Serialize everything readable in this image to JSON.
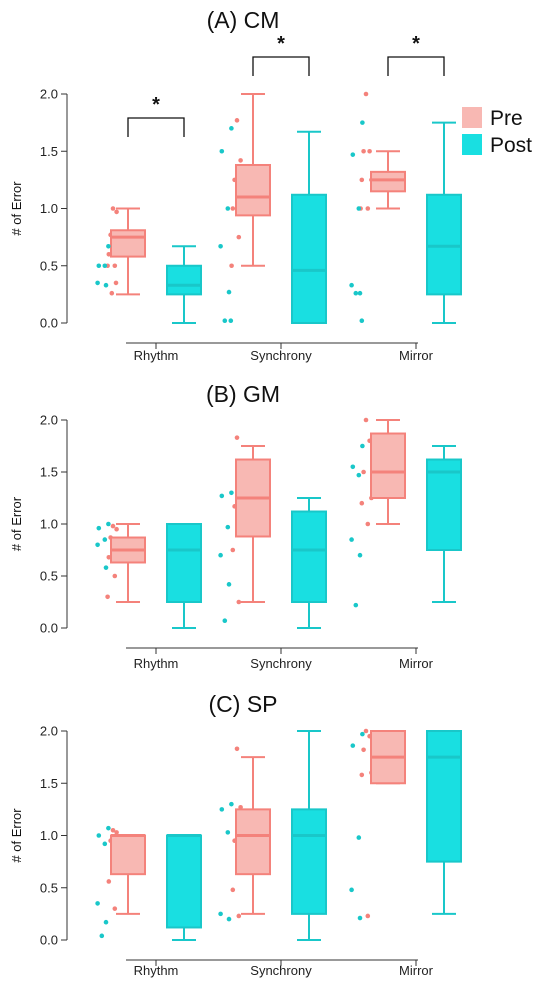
{
  "chart_data": [
    {
      "type": "box",
      "title": "(A) CM",
      "xlabel": "",
      "ylabel": "# of Error",
      "ylim": [
        0,
        2
      ],
      "yticks": [
        0.0,
        0.5,
        1.0,
        1.5,
        2.0
      ],
      "ytick_labels": [
        "0.0",
        "0.5",
        "1.0",
        "1.5",
        "2.0"
      ],
      "categories": [
        "Rhythm",
        "Synchrony",
        "Mirror"
      ],
      "legend": {
        "entries": [
          "Pre",
          "Post"
        ],
        "position": "top-right"
      },
      "significance_markers": [
        {
          "category": "Rhythm",
          "label": "*"
        },
        {
          "category": "Synchrony",
          "label": "*"
        },
        {
          "category": "Mirror",
          "label": "*"
        }
      ],
      "series": [
        {
          "name": "Pre",
          "color": "#f4827b",
          "fill": "#f8b8b3",
          "boxes": [
            {
              "min": 0.25,
              "q1": 0.58,
              "median": 0.75,
              "q3": 0.81,
              "max": 1.0
            },
            {
              "min": 0.5,
              "q1": 0.94,
              "median": 1.1,
              "q3": 1.38,
              "max": 2.0
            },
            {
              "min": 1.0,
              "q1": 1.15,
              "median": 1.25,
              "q3": 1.32,
              "max": 1.5
            }
          ],
          "points": [
            [
              1.0,
              0.97,
              0.77,
              0.75,
              0.6,
              0.5,
              0.5,
              0.35,
              0.26
            ],
            [
              1.77,
              1.42,
              1.25,
              1.2,
              1.0,
              0.75,
              0.5
            ],
            [
              2.0,
              1.5,
              1.5,
              1.25,
              1.25,
              1.0,
              1.0
            ]
          ]
        },
        {
          "name": "Post",
          "color": "#19c7c9",
          "fill": "#19dfe1",
          "boxes": [
            {
              "min": 0.0,
              "q1": 0.25,
              "median": 0.33,
              "q3": 0.5,
              "max": 0.67
            },
            {
              "min": 0.0,
              "q1": 0.0,
              "median": 0.46,
              "q3": 1.12,
              "max": 1.67
            },
            {
              "min": 0.0,
              "q1": 0.25,
              "median": 0.67,
              "q3": 1.12,
              "max": 1.75
            }
          ],
          "points": [
            [
              0.67,
              0.5,
              0.5,
              0.35,
              0.33
            ],
            [
              1.7,
              1.5,
              1.0,
              0.67,
              0.27,
              0.02,
              0.02
            ],
            [
              1.75,
              1.47,
              1.0,
              0.33,
              0.26,
              0.26,
              0.02
            ]
          ]
        }
      ]
    },
    {
      "type": "box",
      "title": "(B) GM",
      "xlabel": "",
      "ylabel": "# of Error",
      "ylim": [
        0,
        2
      ],
      "yticks": [
        0.0,
        0.5,
        1.0,
        1.5,
        2.0
      ],
      "ytick_labels": [
        "0.0",
        "0.5",
        "1.0",
        "1.5",
        "2.0"
      ],
      "categories": [
        "Rhythm",
        "Synchrony",
        "Mirror"
      ],
      "series": [
        {
          "name": "Pre",
          "color": "#f4827b",
          "fill": "#f8b8b3",
          "boxes": [
            {
              "min": 0.25,
              "q1": 0.63,
              "median": 0.75,
              "q3": 0.87,
              "max": 1.0
            },
            {
              "min": 0.25,
              "q1": 0.88,
              "median": 1.25,
              "q3": 1.62,
              "max": 1.75
            },
            {
              "min": 1.0,
              "q1": 1.25,
              "median": 1.5,
              "q3": 1.87,
              "max": 2.0
            }
          ],
          "points": [
            [
              0.98,
              0.95,
              0.87,
              0.8,
              0.68,
              0.5,
              0.3
            ],
            [
              1.83,
              1.45,
              1.17,
              0.95,
              0.75,
              0.25
            ],
            [
              2.0,
              1.8,
              1.5,
              1.25,
              1.2,
              1.0
            ]
          ]
        },
        {
          "name": "Post",
          "color": "#19c7c9",
          "fill": "#19dfe1",
          "boxes": [
            {
              "min": 0.0,
              "q1": 0.25,
              "median": 0.75,
              "q3": 1.0,
              "max": 1.0
            },
            {
              "min": 0.0,
              "q1": 0.25,
              "median": 0.75,
              "q3": 1.12,
              "max": 1.25
            },
            {
              "min": 0.25,
              "q1": 0.75,
              "median": 1.5,
              "q3": 1.62,
              "max": 1.75
            }
          ],
          "points": [
            [
              1.0,
              0.96,
              0.85,
              0.8,
              0.58
            ],
            [
              1.3,
              1.27,
              0.97,
              0.7,
              0.42,
              0.07
            ],
            [
              1.75,
              1.55,
              1.47,
              0.85,
              0.7,
              0.22
            ]
          ]
        }
      ]
    },
    {
      "type": "box",
      "title": "(C) SP",
      "xlabel": "",
      "ylabel": "# of Error",
      "ylim": [
        0,
        2
      ],
      "yticks": [
        0.0,
        0.5,
        1.0,
        1.5,
        2.0
      ],
      "ytick_labels": [
        "0.0",
        "0.5",
        "1.0",
        "1.5",
        "2.0"
      ],
      "categories": [
        "Rhythm",
        "Synchrony",
        "Mirror"
      ],
      "series": [
        {
          "name": "Pre",
          "color": "#f4827b",
          "fill": "#f8b8b3",
          "boxes": [
            {
              "min": 0.25,
              "q1": 0.63,
              "median": 1.0,
              "q3": 1.0,
              "max": 1.0
            },
            {
              "min": 0.25,
              "q1": 0.63,
              "median": 1.0,
              "q3": 1.25,
              "max": 1.75
            },
            {
              "min": 1.5,
              "q1": 1.5,
              "median": 1.75,
              "q3": 2.0,
              "max": 2.0
            }
          ],
          "points": [
            [
              1.05,
              1.03,
              0.95,
              0.75,
              0.56,
              0.3
            ],
            [
              1.83,
              1.27,
              0.95,
              0.72,
              0.48,
              0.23
            ],
            [
              2.0,
              1.95,
              1.82,
              1.6,
              1.58,
              0.23
            ]
          ]
        },
        {
          "name": "Post",
          "color": "#19c7c9",
          "fill": "#19dfe1",
          "boxes": [
            {
              "min": 0.0,
              "q1": 0.12,
              "median": 1.0,
              "q3": 1.0,
              "max": 1.0
            },
            {
              "min": 0.0,
              "q1": 0.25,
              "median": 1.0,
              "q3": 1.25,
              "max": 2.0
            },
            {
              "min": 0.25,
              "q1": 0.75,
              "median": 1.75,
              "q3": 2.0,
              "max": 2.0
            }
          ],
          "points": [
            [
              1.07,
              1.0,
              0.92,
              0.35,
              0.17,
              0.04
            ],
            [
              1.3,
              1.25,
              1.03,
              0.25,
              0.2
            ],
            [
              1.97,
              1.86,
              0.98,
              0.48,
              0.21
            ]
          ]
        }
      ]
    }
  ]
}
